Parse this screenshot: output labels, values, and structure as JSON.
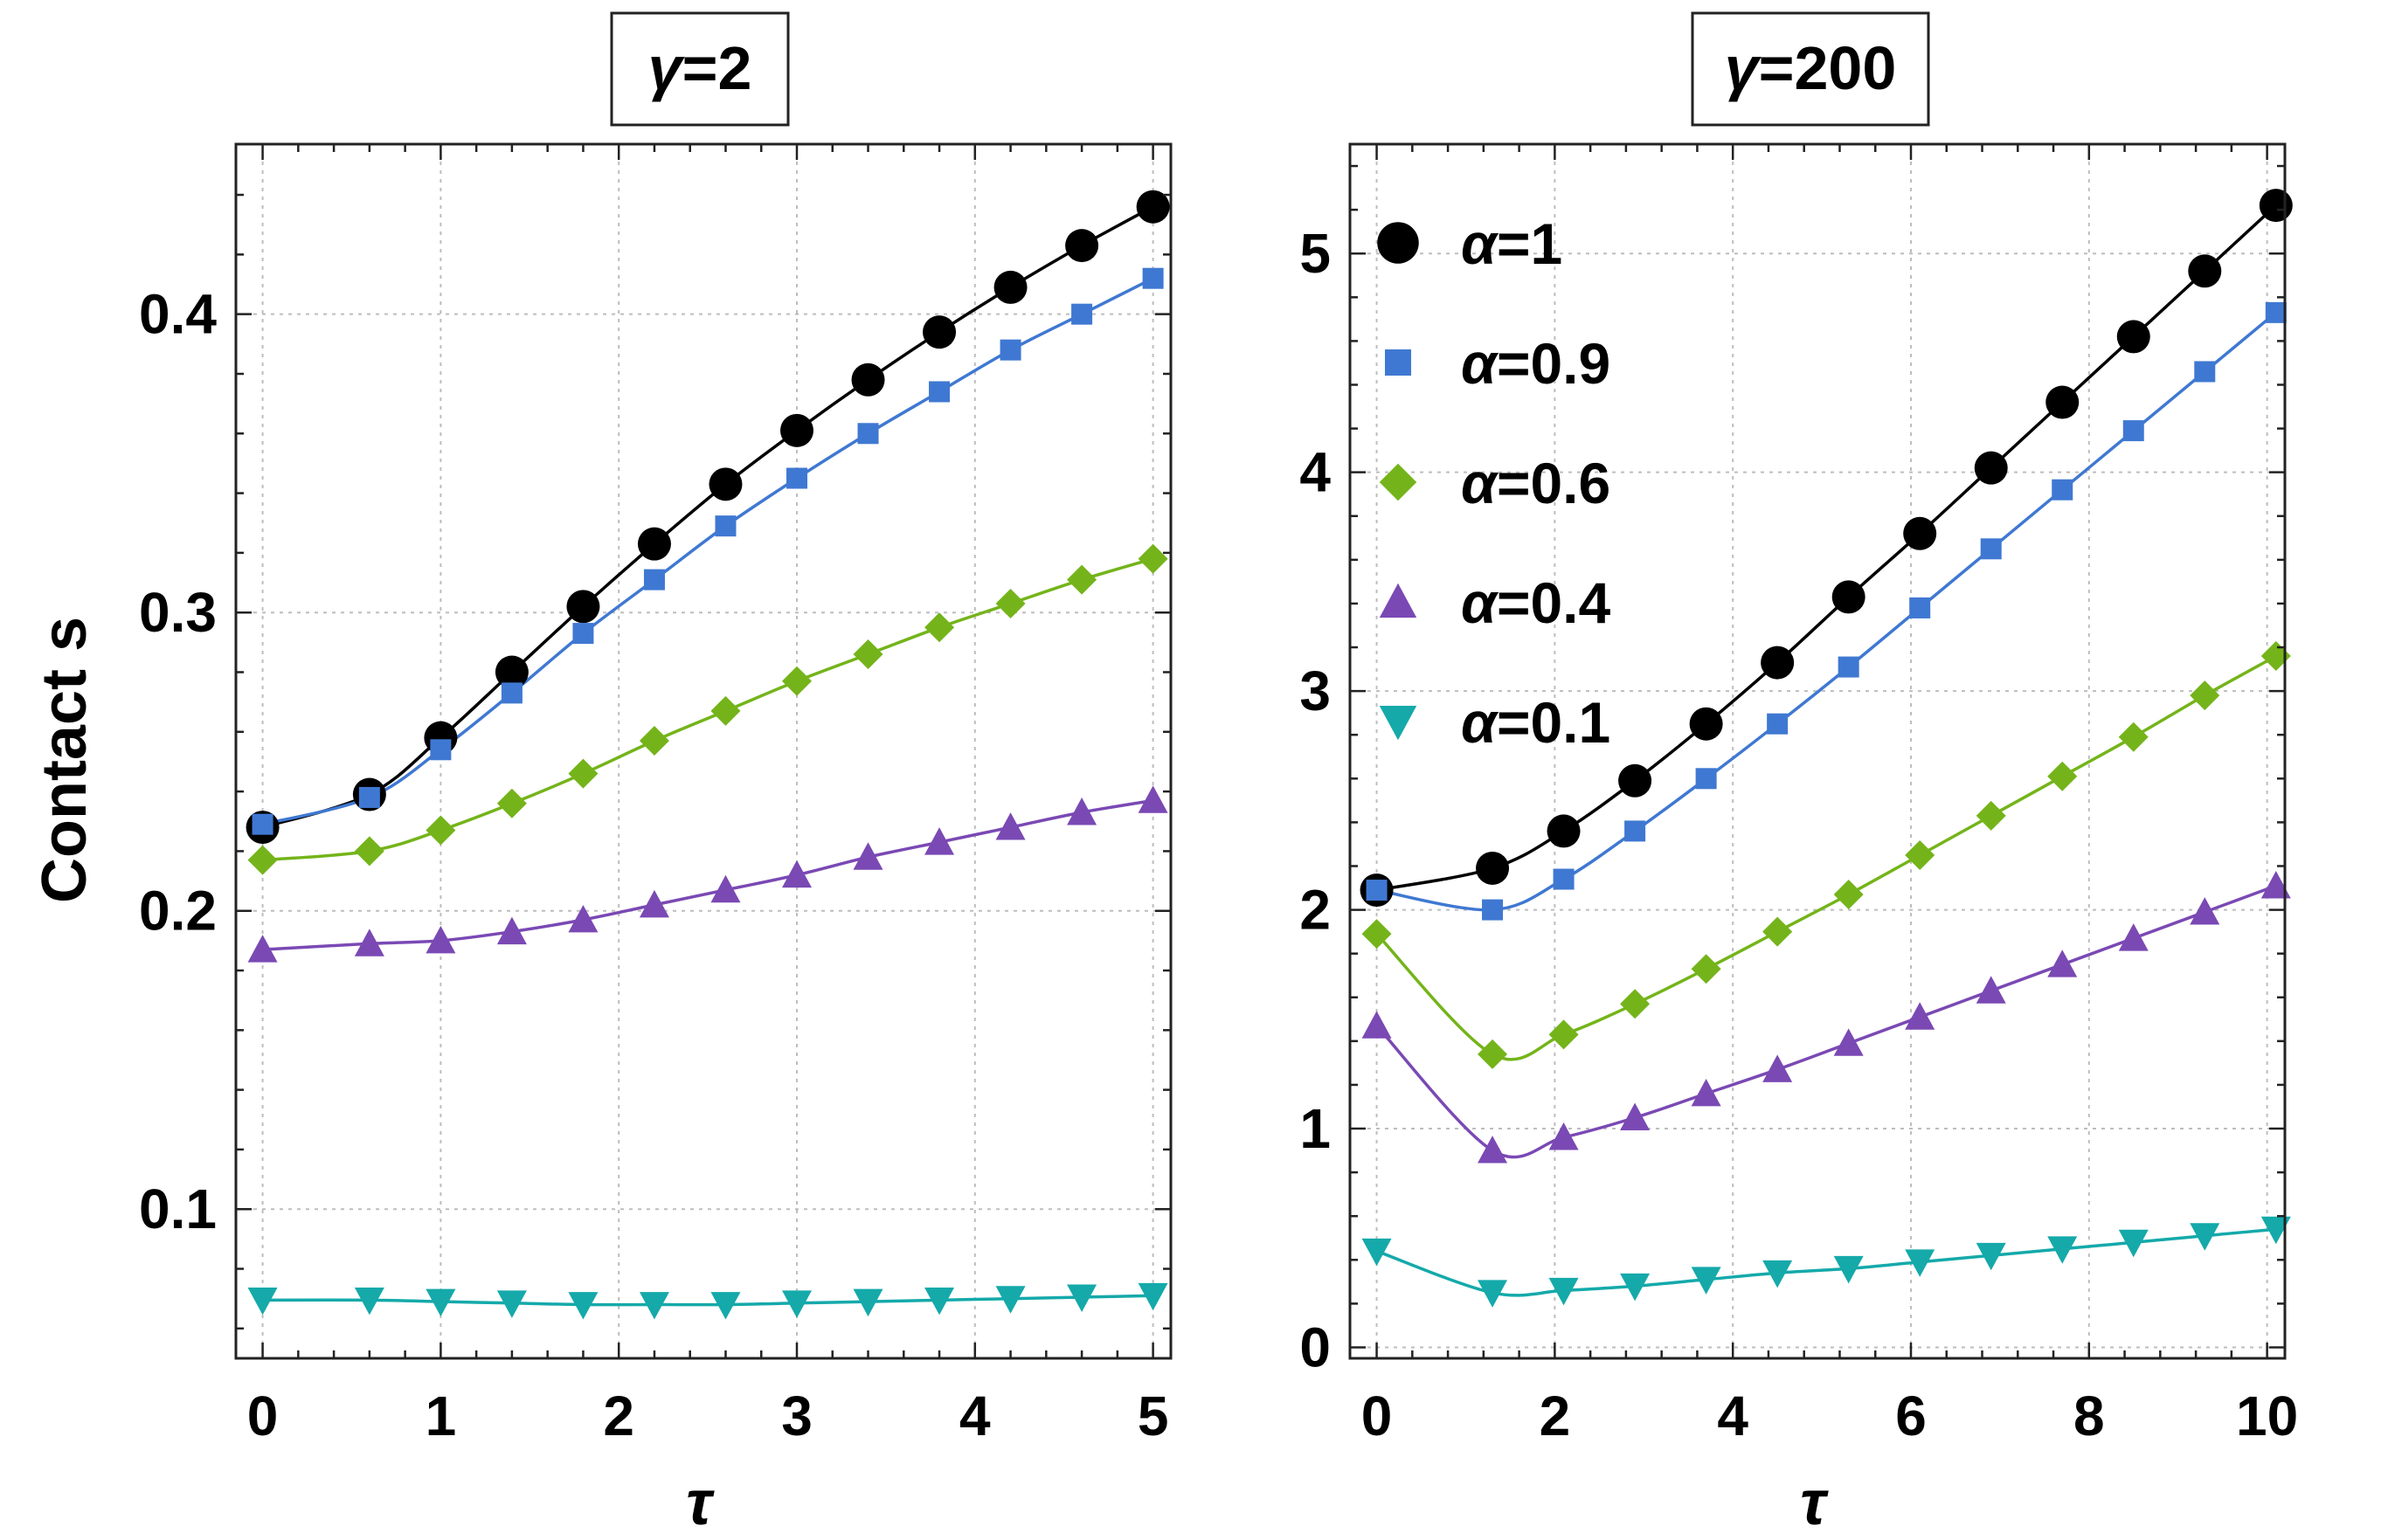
{
  "figure": {
    "ylabel": "Contact s",
    "xlabel": "τ"
  },
  "colors": {
    "α=1": "#000000",
    "α=0.9": "#3f78d2",
    "α=0.6": "#74b41a",
    "α=0.4": "#7a49b4",
    "α=0.1": "#15a9aa"
  },
  "markers": {
    "α=1": "circle",
    "α=0.9": "square",
    "α=0.6": "diamond",
    "α=0.4": "triangle-up",
    "α=0.1": "triangle-down"
  },
  "chart_data": [
    {
      "type": "line",
      "title": "γ=2",
      "xlabel": "τ",
      "ylabel": "Contact s",
      "xlim": [
        -0.15,
        5.1
      ],
      "ylim": [
        0.05,
        0.457
      ],
      "xticks": [
        0,
        1,
        2,
        3,
        4,
        5
      ],
      "yticks": [
        0.1,
        0.2,
        0.3,
        0.4
      ],
      "ytick_labels": [
        "0.1",
        "0.2",
        "0.3",
        "0.4"
      ],
      "grid": true,
      "series": [
        {
          "name": "α=1",
          "x": [
            0,
            0.6,
            1.0,
            1.4,
            1.8,
            2.2,
            2.6,
            3.0,
            3.4,
            3.8,
            4.2,
            4.6,
            5.0
          ],
          "values": [
            0.228,
            0.239,
            0.258,
            0.28,
            0.302,
            0.323,
            0.343,
            0.361,
            0.378,
            0.394,
            0.409,
            0.423,
            0.436
          ]
        },
        {
          "name": "α=0.9",
          "x": [
            0,
            0.6,
            1.0,
            1.4,
            1.8,
            2.2,
            2.6,
            3.0,
            3.4,
            3.8,
            4.2,
            4.6,
            5.0
          ],
          "values": [
            0.229,
            0.238,
            0.254,
            0.273,
            0.293,
            0.311,
            0.329,
            0.345,
            0.36,
            0.374,
            0.388,
            0.4,
            0.412
          ]
        },
        {
          "name": "α=0.6",
          "x": [
            0,
            0.6,
            1.0,
            1.4,
            1.8,
            2.2,
            2.6,
            3.0,
            3.4,
            3.8,
            4.2,
            4.6,
            5.0
          ],
          "values": [
            0.217,
            0.22,
            0.227,
            0.236,
            0.246,
            0.257,
            0.267,
            0.277,
            0.286,
            0.295,
            0.303,
            0.311,
            0.318
          ]
        },
        {
          "name": "α=0.4",
          "x": [
            0,
            0.6,
            1.0,
            1.4,
            1.8,
            2.2,
            2.6,
            3.0,
            3.4,
            3.8,
            4.2,
            4.6,
            5.0
          ],
          "values": [
            0.187,
            0.189,
            0.19,
            0.193,
            0.197,
            0.202,
            0.207,
            0.212,
            0.218,
            0.223,
            0.228,
            0.233,
            0.237
          ]
        },
        {
          "name": "α=0.1",
          "x": [
            0,
            0.6,
            1.0,
            1.4,
            1.8,
            2.2,
            2.6,
            3.0,
            3.4,
            3.8,
            4.2,
            4.6,
            5.0
          ],
          "values": [
            0.0695,
            0.0695,
            0.069,
            0.0685,
            0.068,
            0.068,
            0.068,
            0.0685,
            0.069,
            0.0695,
            0.07,
            0.0705,
            0.071
          ]
        }
      ]
    },
    {
      "type": "line",
      "title": "γ=200",
      "xlabel": "τ",
      "ylabel": "",
      "xlim": [
        -0.3,
        10.2
      ],
      "ylim": [
        -0.05,
        5.5
      ],
      "xticks": [
        0,
        2,
        4,
        6,
        8,
        10
      ],
      "yticks": [
        0,
        1,
        2,
        3,
        4,
        5
      ],
      "ytick_labels": [
        "0",
        "1",
        "2",
        "3",
        "4",
        "5"
      ],
      "grid": true,
      "legend": {
        "placement": "top-left",
        "entries": [
          "α=1",
          "α=0.9",
          "α=0.6",
          "α=0.4",
          "α=0.1"
        ]
      },
      "series": [
        {
          "name": "α=1",
          "x": [
            0,
            1.3,
            2.1,
            2.9,
            3.7,
            4.5,
            5.3,
            6.1,
            6.9,
            7.7,
            8.5,
            9.3,
            10.1
          ],
          "values": [
            2.09,
            2.19,
            2.36,
            2.59,
            2.85,
            3.13,
            3.43,
            3.72,
            4.02,
            4.32,
            4.62,
            4.92,
            5.22
          ]
        },
        {
          "name": "α=0.9",
          "x": [
            0,
            1.3,
            2.1,
            2.9,
            3.7,
            4.5,
            5.3,
            6.1,
            6.9,
            7.7,
            8.5,
            9.3,
            10.1
          ],
          "values": [
            2.09,
            2.0,
            2.14,
            2.36,
            2.6,
            2.85,
            3.11,
            3.38,
            3.65,
            3.92,
            4.19,
            4.46,
            4.73
          ]
        },
        {
          "name": "α=0.6",
          "x": [
            0,
            1.3,
            2.1,
            2.9,
            3.7,
            4.5,
            5.3,
            6.1,
            6.9,
            7.7,
            8.5,
            9.3,
            10.1
          ],
          "values": [
            1.89,
            1.34,
            1.43,
            1.57,
            1.73,
            1.9,
            2.07,
            2.25,
            2.43,
            2.61,
            2.79,
            2.98,
            3.16
          ]
        },
        {
          "name": "α=0.4",
          "x": [
            0,
            1.3,
            2.1,
            2.9,
            3.7,
            4.5,
            5.3,
            6.1,
            6.9,
            7.7,
            8.5,
            9.3,
            10.1
          ],
          "values": [
            1.47,
            0.9,
            0.96,
            1.05,
            1.16,
            1.27,
            1.39,
            1.51,
            1.63,
            1.75,
            1.87,
            1.99,
            2.11
          ]
        },
        {
          "name": "α=0.1",
          "x": [
            0,
            1.3,
            2.1,
            2.9,
            3.7,
            4.5,
            5.3,
            6.1,
            6.9,
            7.7,
            8.5,
            9.3,
            10.1
          ],
          "values": [
            0.44,
            0.25,
            0.26,
            0.28,
            0.31,
            0.34,
            0.36,
            0.39,
            0.42,
            0.45,
            0.48,
            0.51,
            0.54
          ]
        }
      ]
    }
  ]
}
